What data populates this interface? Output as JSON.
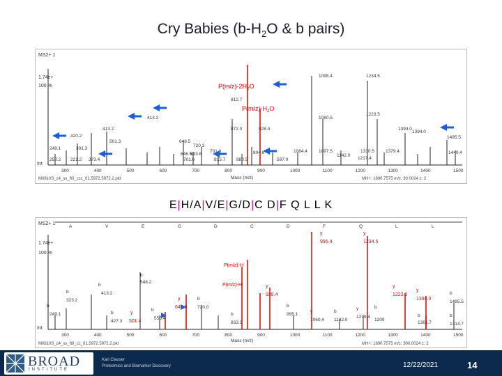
{
  "slide": {
    "title": "Cry Babies (b-H",
    "title_sub": "2",
    "title_end": "O & b pairs)",
    "sequence": {
      "parts": [
        "E",
        "|",
        "H",
        "/",
        "A",
        "|",
        "V",
        "/",
        "E",
        "|",
        "G",
        "/",
        "D",
        "|",
        "C D",
        "|",
        "F Q L L K"
      ]
    },
    "footer": {
      "logo_word": "BROAD",
      "logo_sub": "INSTITUTE",
      "credit_line1": "Karl Clauser",
      "credit_line2": "Proteomics and Biomarker Discovery",
      "date": "12/22/2021",
      "page_number": "14"
    }
  },
  "spectrum1": {
    "header": "MS2+ 1",
    "intensity": "1.74e+",
    "percent": "100 %",
    "ion_label": "Int",
    "xlabel": "Mass (m/z)",
    "file_label": "M0810S_c4_ss_ft0_ccc_01.5972.5972.2.pkl",
    "mh_label": "MH+: 1890.7575   m/z: 30 0024   z: 2",
    "annot_a": "P(m/z)-2H",
    "annot_a_sub": "2",
    "annot_a_end": "O",
    "annot_b": "P(m/z)-H",
    "annot_b_sub": "2",
    "annot_b_end": "O",
    "ticks": [
      "300",
      "400",
      "500",
      "600",
      "700",
      "800",
      "900",
      "1000",
      "1100",
      "1200",
      "1300",
      "1400",
      "1500"
    ]
  },
  "spectrum2": {
    "header": "MS2+ 1",
    "intensity": "1.74e+",
    "percent": "100 %",
    "ion_label": "Int",
    "xlabel": "Mass (m/z)",
    "file_label": "M0810S_c4_ss_ft0_cc_01.5972.5972.2.pkl",
    "mh_label": "MH+: 1890.7575   m/z: 300.0024   z: 2",
    "ticks": [
      "300",
      "400",
      "500",
      "600",
      "700",
      "800",
      "900",
      "1000",
      "1100",
      "1200",
      "1300",
      "1400",
      "1500"
    ],
    "residues": [
      "A",
      "V",
      "E",
      "G",
      "D",
      "C",
      "D",
      "F",
      "Q",
      "L",
      "L"
    ]
  },
  "colors": {
    "accent_blue": "#1f5fd6",
    "peak_red": "#e00000",
    "footer_bg": "#0b2a4e",
    "sequence_bar": "#c000a0"
  }
}
